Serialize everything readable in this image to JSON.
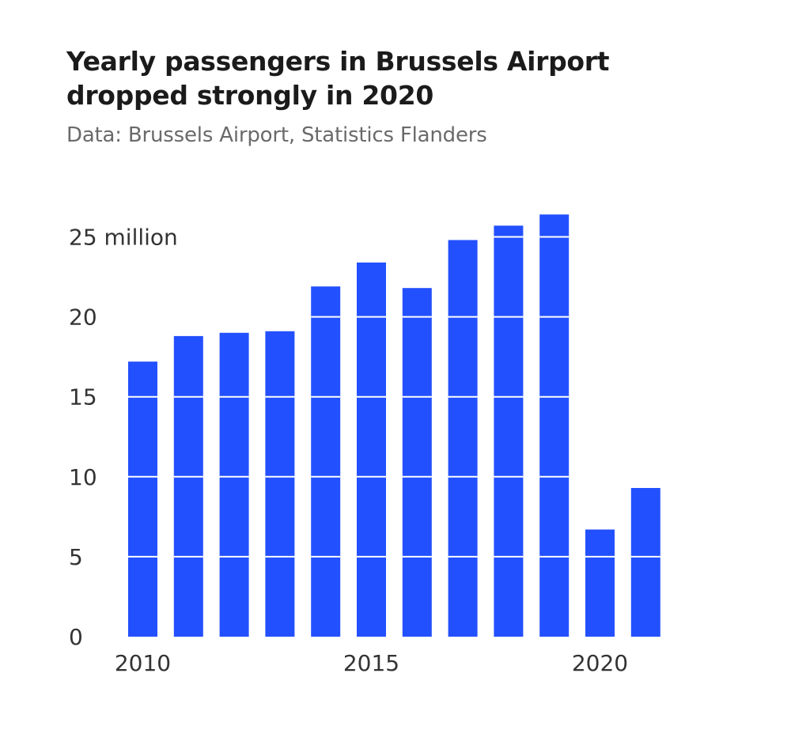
{
  "title": "Yearly passengers in Brussels Airport dropped strongly in 2020",
  "subtitle": "Data: Brussels Airport, Statistics Flanders",
  "chart_data": {
    "type": "bar",
    "title": "Yearly passengers in Brussels Airport dropped strongly in 2020",
    "subtitle": "Data: Brussels Airport, Statistics Flanders",
    "xlabel": "",
    "ylabel": "",
    "categories": [
      "2010",
      "2011",
      "2012",
      "2013",
      "2014",
      "2015",
      "2016",
      "2017",
      "2018",
      "2019",
      "2020",
      "2021"
    ],
    "values": [
      17.2,
      18.8,
      19.0,
      19.1,
      21.9,
      23.4,
      21.8,
      24.8,
      25.7,
      26.4,
      6.7,
      9.3
    ],
    "ylim": [
      0,
      26.5
    ],
    "yticks": [
      0,
      5,
      10,
      15,
      20,
      25
    ],
    "ytick_labels": [
      "0",
      "5",
      "10",
      "15",
      "20",
      "25 million"
    ],
    "xtick_labels": [
      "2010",
      "2015",
      "2020"
    ],
    "xtick_positions": [
      "2010",
      "2015",
      "2020"
    ],
    "grid": "white lines across bars",
    "bar_color": "#2350ff"
  }
}
